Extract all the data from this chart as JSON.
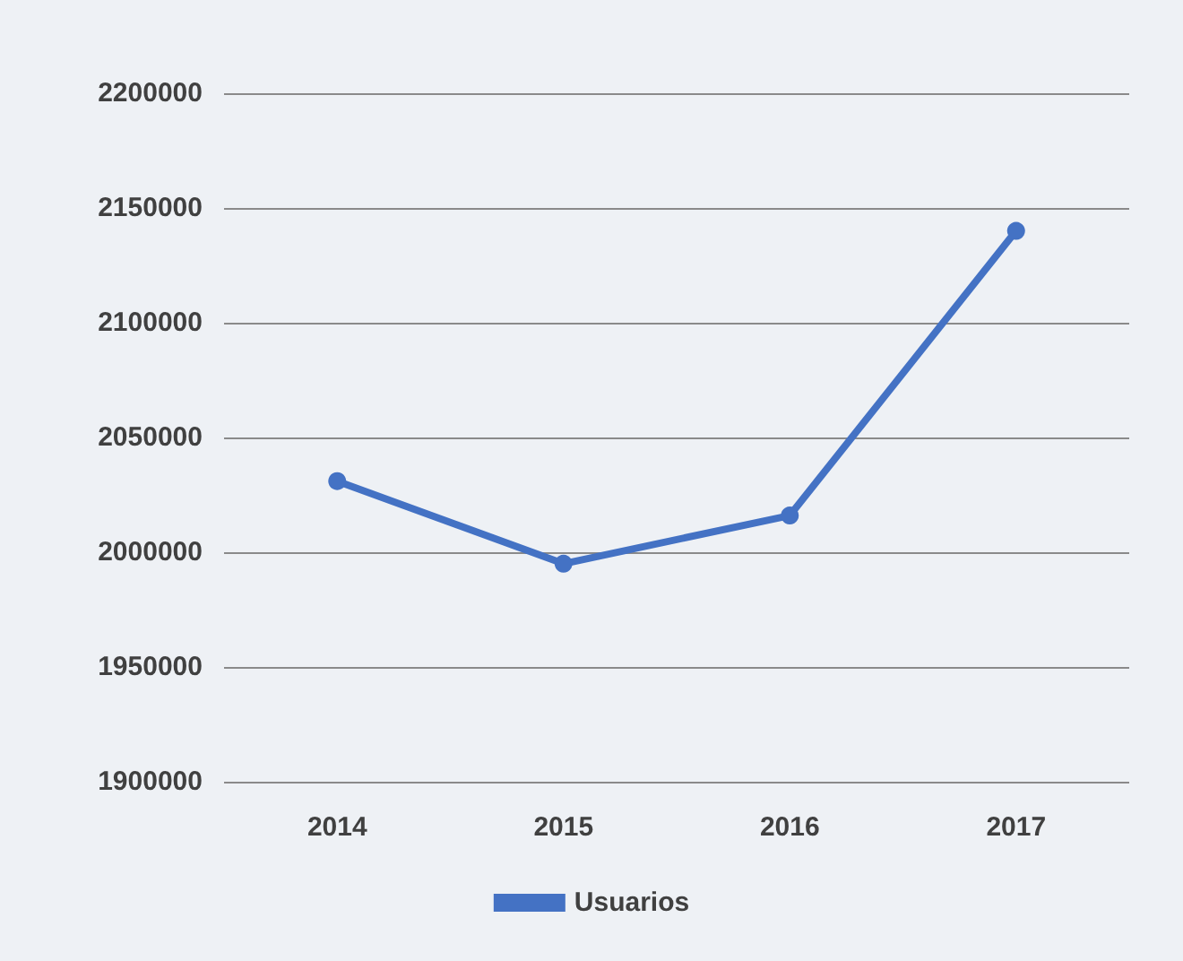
{
  "chart_data": {
    "type": "line",
    "categories": [
      "2014",
      "2015",
      "2016",
      "2017"
    ],
    "series": [
      {
        "name": "Usuarios",
        "color": "#4472c4",
        "values": [
          2031000,
          1995000,
          2016000,
          2140000
        ]
      }
    ],
    "ylim": [
      1900000,
      2200000
    ],
    "yticks": [
      1900000,
      1950000,
      2000000,
      2050000,
      2100000,
      2150000,
      2200000
    ],
    "grid": "y",
    "legend": "bottom",
    "marker": "circle",
    "line_style": "solid"
  }
}
